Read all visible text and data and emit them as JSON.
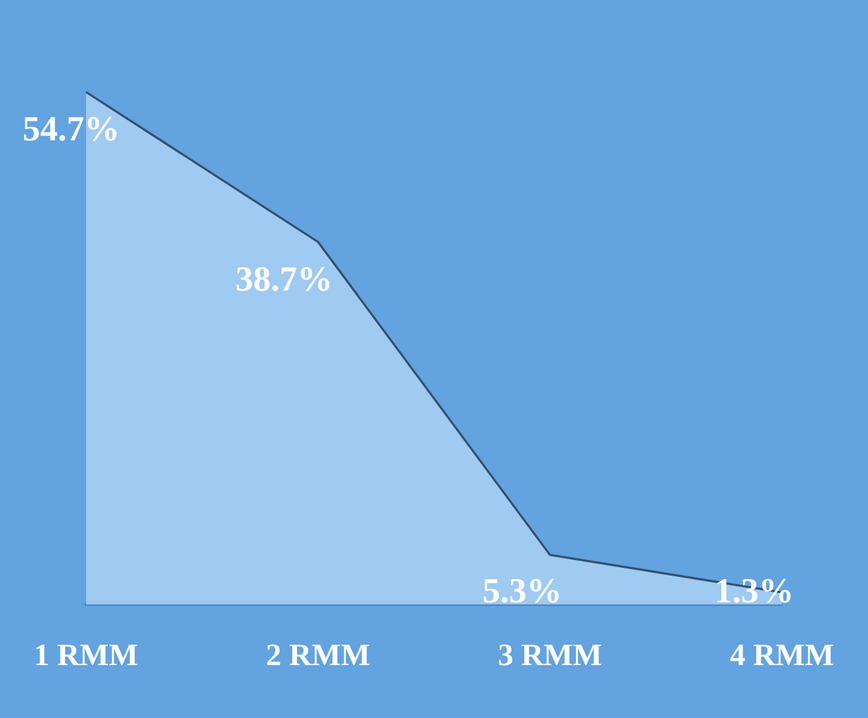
{
  "chart_data": {
    "type": "area",
    "categories": [
      "1 RMM",
      "2 RMM",
      "3 RMM",
      "4 RMM"
    ],
    "series": [
      {
        "color": "#a9d0f3",
        "values": [
          54.7,
          38.7,
          5.3,
          1.3
        ],
        "value_labels": [
          "54.7%",
          "38.7%",
          "5.3%",
          "1.3%"
        ]
      }
    ],
    "legend": false,
    "grid": false,
    "marker": "none"
  }
}
